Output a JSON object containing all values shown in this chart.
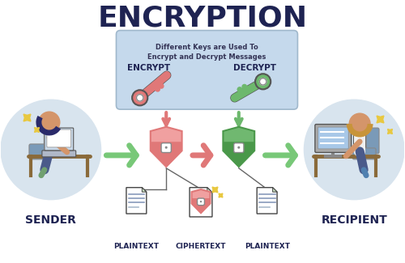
{
  "title": "ENCRYPTION",
  "subtitle_line1": "Different Keys are Used To",
  "subtitle_line2": "Encrypt and Decrypt Messages",
  "encrypt_label": "ENCRYPT",
  "decrypt_label": "DECRYPT",
  "sender_label": "SENDER",
  "recipient_label": "RECIPIENT",
  "plaintext_label1": "PLAINTEXT",
  "ciphertext_label": "CIPHERTEXT",
  "plaintext_label2": "PLAINTEXT",
  "bg_color": "#ffffff",
  "title_color": "#1e2352",
  "box_bg": "#c5d9ec",
  "box_border": "#a0b8cc",
  "encrypt_key_color": "#e07878",
  "decrypt_key_color": "#6db86d",
  "shield_red_fill": "#f0a0a0",
  "shield_red_dark": "#e07878",
  "shield_green_fill": "#70b870",
  "shield_green_dark": "#4a984a",
  "arrow_green": "#78c878",
  "arrow_red": "#e07878",
  "arrow_down_red": "#e07878",
  "arrow_down_green": "#6db86d",
  "sender_circle": "#d8e4ee",
  "recipient_circle": "#d8e4ee",
  "doc_line_color": "#8899bb",
  "doc_fold_color": "#c8e0c0",
  "label_color": "#1e2352",
  "sparkle_color": "#e8c840",
  "lock_white": "#ffffff",
  "skin_color": "#d4956a",
  "hair_dark": "#2a2a6a",
  "hair_light": "#c8943a",
  "shirt_white": "#f0f0f0",
  "pants_blue": "#4a5a8a",
  "desk_color": "#8a6a3a",
  "chair_blue": "#7a9ab8",
  "laptop_color": "#c8d8e8",
  "monitor_color": "#c8d8e8",
  "monitor_screen": "#a8c8e8"
}
